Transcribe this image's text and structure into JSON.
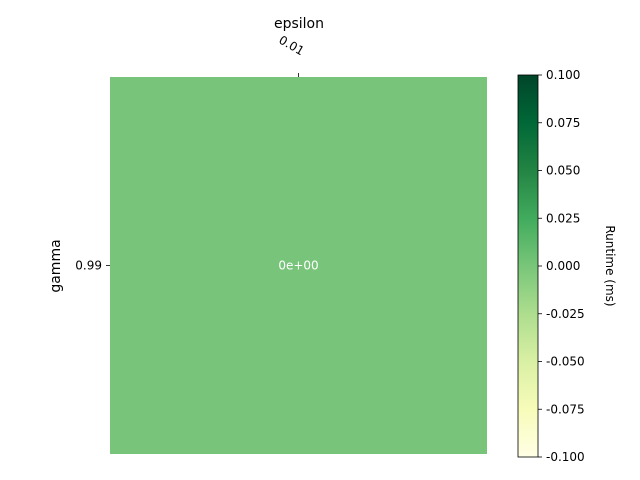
{
  "chart_data": {
    "type": "heatmap",
    "title": "",
    "xlabel": "epsilon",
    "ylabel": "gamma",
    "x_categories": [
      "0.01"
    ],
    "y_categories": [
      "0.99"
    ],
    "values": [
      [
        0
      ]
    ],
    "cell_labels": [
      [
        "0e+00"
      ]
    ],
    "colorbar": {
      "label": "Runtime (ms)",
      "colormap": "Greens",
      "vmin": -0.1,
      "vmax": 0.1,
      "ticks": [
        "0.100",
        "0.075",
        "0.050",
        "0.025",
        "0.000",
        "-0.025",
        "-0.050",
        "-0.075",
        "-0.100"
      ],
      "tick_values": [
        0.1,
        0.075,
        0.05,
        0.025,
        0.0,
        -0.025,
        -0.05,
        -0.075,
        -0.1
      ]
    },
    "colors": {
      "cell": "#78c47b",
      "cmap_low": "#f7fcc0",
      "cmap_mid": "#78c47b",
      "cmap_high": "#00441b"
    }
  }
}
